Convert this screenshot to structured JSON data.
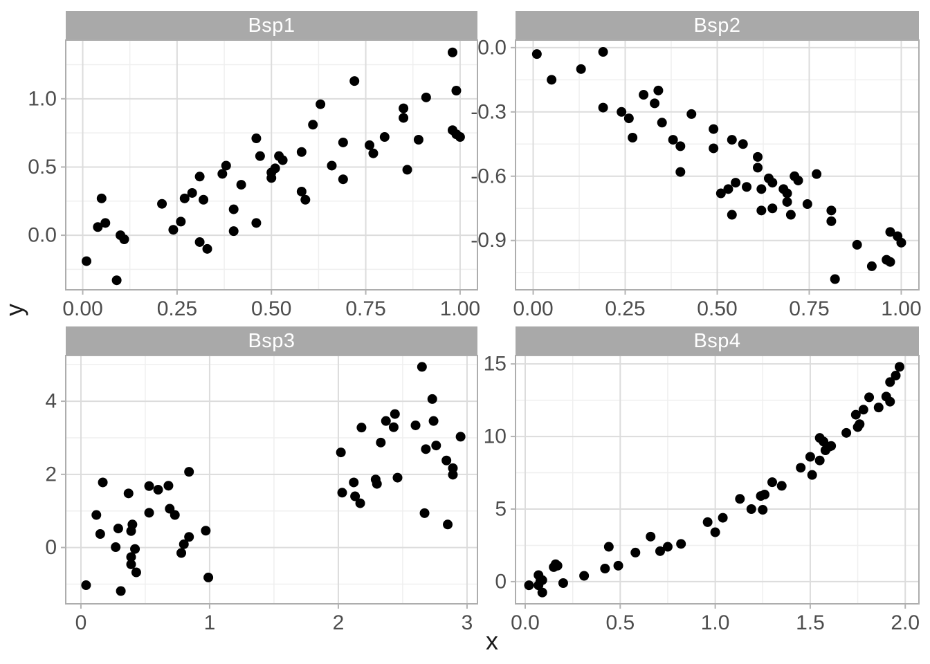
{
  "figure": {
    "axis_title_x": "x",
    "axis_title_y": "y",
    "colors": {
      "strip_bg": "#A9A9A9",
      "strip_text": "#FFFFFF",
      "panel_bg": "#FFFFFF",
      "panel_border": "#ADADAD",
      "grid_major": "#DCDCDC",
      "grid_minor": "#EFEFEF",
      "tick_mark": "#B3B3B3",
      "tick_label": "#4D4D4D",
      "point": "#000000"
    }
  },
  "chart_data": [
    {
      "type": "scatter",
      "facet": "Bsp1",
      "xlabel": "x",
      "ylabel": "y",
      "xlim": [
        -0.045,
        1.046
      ],
      "ylim": [
        -0.4,
        1.43
      ],
      "x_ticks": [
        0,
        0.25,
        0.5,
        0.75,
        1
      ],
      "x_tick_labels": [
        "0.00",
        "0.25",
        "0.50",
        "0.75",
        "1.00"
      ],
      "x_minor": [
        0.125,
        0.375,
        0.625,
        0.875
      ],
      "y_ticks": [
        0,
        0.5,
        1
      ],
      "y_tick_labels": [
        "0.0",
        "0.5",
        "1.0"
      ],
      "y_minor": [
        -0.25,
        0.25,
        0.75,
        1.25
      ],
      "grid": true,
      "points": [
        [
          0.01,
          -0.19
        ],
        [
          0.04,
          0.06
        ],
        [
          0.05,
          0.27
        ],
        [
          0.06,
          0.09
        ],
        [
          0.09,
          -0.33
        ],
        [
          0.1,
          0.0
        ],
        [
          0.11,
          -0.03
        ],
        [
          0.21,
          0.23
        ],
        [
          0.24,
          0.04
        ],
        [
          0.26,
          0.1
        ],
        [
          0.27,
          0.27
        ],
        [
          0.29,
          0.31
        ],
        [
          0.31,
          0.43
        ],
        [
          0.31,
          -0.05
        ],
        [
          0.32,
          0.26
        ],
        [
          0.33,
          -0.1
        ],
        [
          0.37,
          0.45
        ],
        [
          0.38,
          0.51
        ],
        [
          0.4,
          0.19
        ],
        [
          0.4,
          0.03
        ],
        [
          0.42,
          0.37
        ],
        [
          0.46,
          0.71
        ],
        [
          0.46,
          0.09
        ],
        [
          0.47,
          0.58
        ],
        [
          0.5,
          0.46
        ],
        [
          0.5,
          0.42
        ],
        [
          0.51,
          0.49
        ],
        [
          0.52,
          0.58
        ],
        [
          0.53,
          0.55
        ],
        [
          0.58,
          0.61
        ],
        [
          0.58,
          0.32
        ],
        [
          0.59,
          0.26
        ],
        [
          0.61,
          0.81
        ],
        [
          0.63,
          0.96
        ],
        [
          0.66,
          0.51
        ],
        [
          0.69,
          0.68
        ],
        [
          0.69,
          0.41
        ],
        [
          0.72,
          1.13
        ],
        [
          0.76,
          0.66
        ],
        [
          0.77,
          0.6
        ],
        [
          0.8,
          0.72
        ],
        [
          0.85,
          0.93
        ],
        [
          0.85,
          0.86
        ],
        [
          0.86,
          0.48
        ],
        [
          0.89,
          0.7
        ],
        [
          0.91,
          1.01
        ],
        [
          0.98,
          1.34
        ],
        [
          0.99,
          1.06
        ],
        [
          0.98,
          0.77
        ],
        [
          0.99,
          0.74
        ],
        [
          1.0,
          0.72
        ]
      ]
    },
    {
      "type": "scatter",
      "facet": "Bsp2",
      "xlabel": "x",
      "ylabel": "y",
      "xlim": [
        -0.048,
        1.048
      ],
      "ylim": [
        -1.13,
        0.035
      ],
      "x_ticks": [
        0,
        0.25,
        0.5,
        0.75,
        1
      ],
      "x_tick_labels": [
        "0.00",
        "0.25",
        "0.50",
        "0.75",
        "1.00"
      ],
      "x_minor": [
        0.125,
        0.375,
        0.625,
        0.875
      ],
      "y_ticks": [
        -0.9,
        -0.6,
        -0.3,
        0
      ],
      "y_tick_labels": [
        "-0.9",
        "-0.6",
        "-0.3",
        "0.0"
      ],
      "y_minor": [
        -1.05,
        -0.75,
        -0.45,
        -0.15
      ],
      "grid": true,
      "points": [
        [
          0.01,
          -0.03
        ],
        [
          0.05,
          -0.15
        ],
        [
          0.13,
          -0.1
        ],
        [
          0.19,
          -0.02
        ],
        [
          0.19,
          -0.28
        ],
        [
          0.24,
          -0.3
        ],
        [
          0.26,
          -0.33
        ],
        [
          0.27,
          -0.42
        ],
        [
          0.3,
          -0.22
        ],
        [
          0.33,
          -0.26
        ],
        [
          0.34,
          -0.2
        ],
        [
          0.35,
          -0.35
        ],
        [
          0.38,
          -0.43
        ],
        [
          0.4,
          -0.46
        ],
        [
          0.4,
          -0.58
        ],
        [
          0.43,
          -0.31
        ],
        [
          0.49,
          -0.38
        ],
        [
          0.49,
          -0.47
        ],
        [
          0.51,
          -0.68
        ],
        [
          0.53,
          -0.66
        ],
        [
          0.54,
          -0.78
        ],
        [
          0.54,
          -0.43
        ],
        [
          0.55,
          -0.63
        ],
        [
          0.57,
          -0.45
        ],
        [
          0.58,
          -0.65
        ],
        [
          0.61,
          -0.51
        ],
        [
          0.61,
          -0.56
        ],
        [
          0.62,
          -0.66
        ],
        [
          0.62,
          -0.76
        ],
        [
          0.64,
          -0.61
        ],
        [
          0.65,
          -0.63
        ],
        [
          0.65,
          -0.75
        ],
        [
          0.68,
          -0.66
        ],
        [
          0.69,
          -0.68
        ],
        [
          0.69,
          -0.72
        ],
        [
          0.7,
          -0.78
        ],
        [
          0.71,
          -0.6
        ],
        [
          0.72,
          -0.62
        ],
        [
          0.745,
          -0.73
        ],
        [
          0.77,
          -0.59
        ],
        [
          0.81,
          -0.76
        ],
        [
          0.81,
          -0.81
        ],
        [
          0.82,
          -1.08
        ],
        [
          0.88,
          -0.92
        ],
        [
          0.92,
          -1.02
        ],
        [
          0.97,
          -0.86
        ],
        [
          0.97,
          -1.0
        ],
        [
          0.99,
          -0.88
        ],
        [
          1.0,
          -0.91
        ],
        [
          0.96,
          -0.99
        ]
      ]
    },
    {
      "type": "scatter",
      "facet": "Bsp3",
      "xlabel": "x",
      "ylabel": "y",
      "xlim": [
        -0.118,
        3.081
      ],
      "ylim": [
        -1.54,
        5.25
      ],
      "x_ticks": [
        0,
        1,
        2,
        3
      ],
      "x_tick_labels": [
        "0",
        "1",
        "2",
        "3"
      ],
      "x_minor": [
        0.5,
        1.5,
        2.5
      ],
      "y_ticks": [
        0,
        2,
        4
      ],
      "y_tick_labels": [
        "0",
        "2",
        "4"
      ],
      "y_minor": [
        -1,
        1,
        3,
        5
      ],
      "grid": true,
      "points": [
        [
          0.04,
          -1.03
        ],
        [
          0.12,
          0.89
        ],
        [
          0.15,
          0.37
        ],
        [
          0.17,
          1.78
        ],
        [
          0.27,
          0.01
        ],
        [
          0.29,
          0.52
        ],
        [
          0.31,
          -1.19
        ],
        [
          0.37,
          1.48
        ],
        [
          0.39,
          0.45
        ],
        [
          0.4,
          0.63
        ],
        [
          0.39,
          -0.26
        ],
        [
          0.39,
          -0.46
        ],
        [
          0.42,
          -0.04
        ],
        [
          0.43,
          -0.68
        ],
        [
          0.53,
          0.95
        ],
        [
          0.53,
          1.68
        ],
        [
          0.6,
          1.58
        ],
        [
          0.68,
          1.69
        ],
        [
          0.69,
          1.06
        ],
        [
          0.73,
          0.89
        ],
        [
          0.78,
          -0.15
        ],
        [
          0.8,
          0.09
        ],
        [
          0.84,
          0.29
        ],
        [
          0.84,
          2.07
        ],
        [
          0.97,
          0.46
        ],
        [
          0.99,
          -0.82
        ],
        [
          2.02,
          2.6
        ],
        [
          2.03,
          1.5
        ],
        [
          2.12,
          1.78
        ],
        [
          2.13,
          1.4
        ],
        [
          2.17,
          1.21
        ],
        [
          2.18,
          3.28
        ],
        [
          2.29,
          1.86
        ],
        [
          2.3,
          1.74
        ],
        [
          2.33,
          2.87
        ],
        [
          2.37,
          3.46
        ],
        [
          2.43,
          3.29
        ],
        [
          2.44,
          3.65
        ],
        [
          2.46,
          1.91
        ],
        [
          2.6,
          3.34
        ],
        [
          2.65,
          4.94
        ],
        [
          2.68,
          2.69
        ],
        [
          2.67,
          0.94
        ],
        [
          2.73,
          4.06
        ],
        [
          2.74,
          3.46
        ],
        [
          2.76,
          2.79
        ],
        [
          2.84,
          2.38
        ],
        [
          2.85,
          0.63
        ],
        [
          2.89,
          2.17
        ],
        [
          2.89,
          1.99
        ],
        [
          2.95,
          3.03
        ]
      ]
    },
    {
      "type": "scatter",
      "facet": "Bsp4",
      "xlabel": "x",
      "ylabel": "y",
      "xlim": [
        -0.051,
        2.072
      ],
      "ylim": [
        -1.53,
        15.58
      ],
      "x_ticks": [
        0,
        0.5,
        1,
        1.5,
        2
      ],
      "x_tick_labels": [
        "0.0",
        "0.5",
        "1.0",
        "1.5",
        "2.0"
      ],
      "x_minor": [
        0.25,
        0.75,
        1.25,
        1.75
      ],
      "y_ticks": [
        0,
        5,
        10,
        15
      ],
      "y_tick_labels": [
        "0",
        "5",
        "10",
        "15"
      ],
      "y_minor": [
        2.5,
        7.5,
        12.5
      ],
      "grid": true,
      "points": [
        [
          0.02,
          -0.25
        ],
        [
          0.07,
          0.45
        ],
        [
          0.07,
          -0.25
        ],
        [
          0.08,
          0.05
        ],
        [
          0.09,
          -0.75
        ],
        [
          0.09,
          0.1
        ],
        [
          0.15,
          1.0
        ],
        [
          0.16,
          1.2
        ],
        [
          0.17,
          1.1
        ],
        [
          0.2,
          -0.1
        ],
        [
          0.31,
          0.4
        ],
        [
          0.42,
          0.9
        ],
        [
          0.44,
          2.4
        ],
        [
          0.49,
          1.1
        ],
        [
          0.58,
          2.0
        ],
        [
          0.66,
          3.1
        ],
        [
          0.71,
          2.1
        ],
        [
          0.75,
          2.4
        ],
        [
          0.82,
          2.6
        ],
        [
          0.96,
          4.1
        ],
        [
          1.0,
          3.4
        ],
        [
          1.04,
          4.4
        ],
        [
          1.13,
          5.7
        ],
        [
          1.19,
          5.0
        ],
        [
          1.24,
          5.9
        ],
        [
          1.25,
          4.95
        ],
        [
          1.26,
          6.0
        ],
        [
          1.3,
          6.85
        ],
        [
          1.35,
          6.6
        ],
        [
          1.45,
          7.85
        ],
        [
          1.5,
          8.6
        ],
        [
          1.51,
          7.35
        ],
        [
          1.55,
          8.35
        ],
        [
          1.55,
          9.9
        ],
        [
          1.57,
          9.65
        ],
        [
          1.58,
          9.05
        ],
        [
          1.6,
          9.3
        ],
        [
          1.61,
          9.35
        ],
        [
          1.69,
          10.25
        ],
        [
          1.74,
          11.5
        ],
        [
          1.75,
          10.65
        ],
        [
          1.76,
          10.85
        ],
        [
          1.78,
          11.85
        ],
        [
          1.81,
          12.7
        ],
        [
          1.86,
          12.0
        ],
        [
          1.9,
          12.75
        ],
        [
          1.92,
          12.4
        ],
        [
          1.92,
          13.75
        ],
        [
          1.95,
          14.2
        ],
        [
          1.97,
          14.8
        ]
      ]
    }
  ]
}
